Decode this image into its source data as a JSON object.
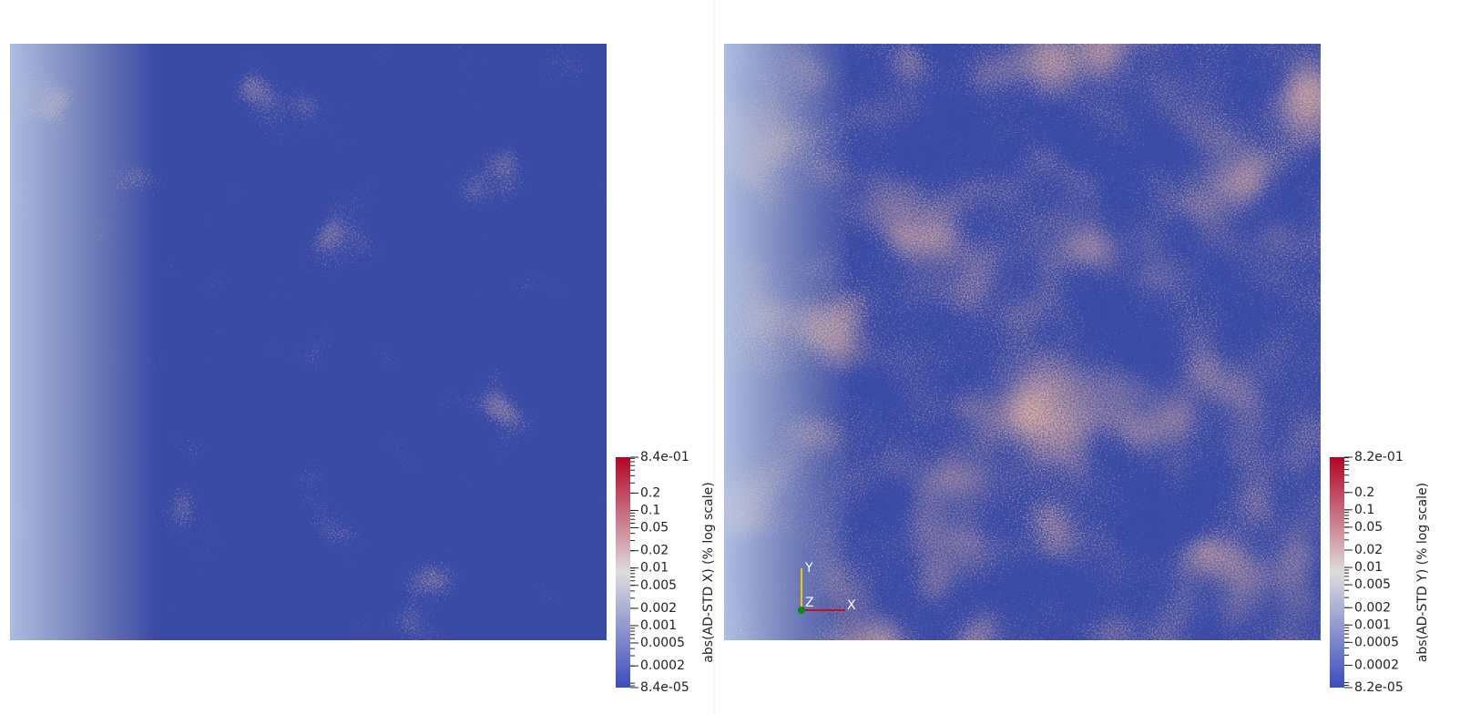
{
  "chart_data": [
    {
      "type": "heatmap",
      "colorbar_label": "abs(AD-STD X) (% log scale)",
      "log": true,
      "clim": [
        8.4e-05,
        0.84
      ],
      "colormap": [
        "#3b4cc0",
        "#dddddd",
        "#b40426"
      ],
      "cticks": [
        {
          "value": 0.84,
          "label": "8.4e-01"
        },
        0.2,
        0.1,
        0.05,
        0.02,
        0.01,
        0.005,
        0.002,
        0.001,
        0.0005,
        0.0002,
        {
          "value": 8.4e-05,
          "label": "8.4e-05"
        }
      ]
    },
    {
      "type": "heatmap",
      "colorbar_label": "abs(AD-STD Y) (% log scale)",
      "log": true,
      "clim": [
        8.2e-05,
        0.82
      ],
      "colormap": [
        "#3b4cc0",
        "#dddddd",
        "#b40426"
      ],
      "cticks": [
        {
          "value": 0.82,
          "label": "8.2e-01"
        },
        0.2,
        0.1,
        0.05,
        0.02,
        0.01,
        0.005,
        0.002,
        0.001,
        0.0005,
        0.0002,
        {
          "value": 8.2e-05,
          "label": "8.2e-05"
        }
      ],
      "axes_labels": [
        "X",
        "Y",
        "Z"
      ]
    }
  ]
}
